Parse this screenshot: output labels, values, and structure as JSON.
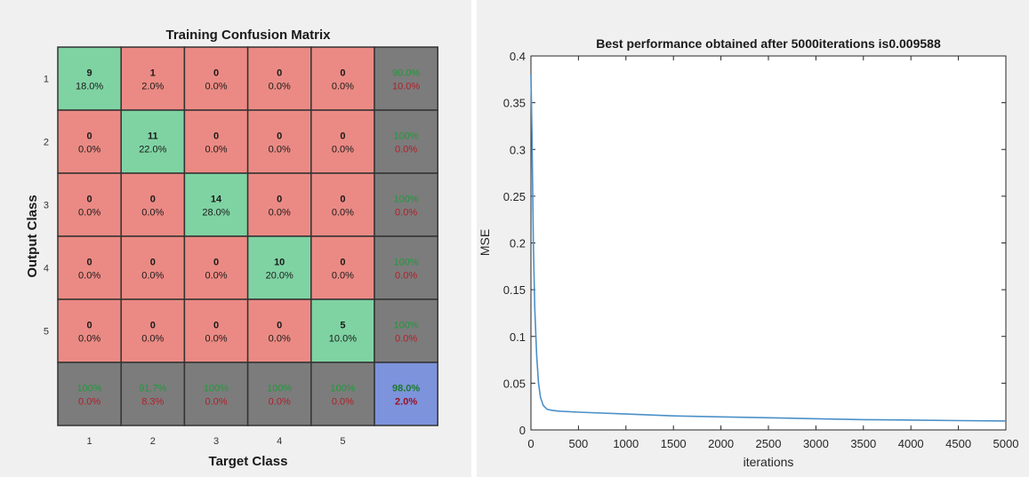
{
  "chart_data": [
    {
      "type": "heatmap",
      "title": "Training Confusion Matrix",
      "xlabel": "Target Class",
      "ylabel": "Output Class",
      "classes": [
        "1",
        "2",
        "3",
        "4",
        "5"
      ],
      "counts": [
        [
          9,
          1,
          0,
          0,
          0
        ],
        [
          0,
          11,
          0,
          0,
          0
        ],
        [
          0,
          0,
          14,
          0,
          0
        ],
        [
          0,
          0,
          0,
          10,
          0
        ],
        [
          0,
          0,
          0,
          0,
          5
        ]
      ],
      "percents": [
        [
          "18.0%",
          "2.0%",
          "0.0%",
          "0.0%",
          "0.0%"
        ],
        [
          "0.0%",
          "22.0%",
          "0.0%",
          "0.0%",
          "0.0%"
        ],
        [
          "0.0%",
          "0.0%",
          "28.0%",
          "0.0%",
          "0.0%"
        ],
        [
          "0.0%",
          "0.0%",
          "0.0%",
          "20.0%",
          "0.0%"
        ],
        [
          "0.0%",
          "0.0%",
          "0.0%",
          "0.0%",
          "10.0%"
        ]
      ],
      "row_summary": [
        [
          "90.0%",
          "10.0%"
        ],
        [
          "100%",
          "0.0%"
        ],
        [
          "100%",
          "0.0%"
        ],
        [
          "100%",
          "0.0%"
        ],
        [
          "100%",
          "0.0%"
        ]
      ],
      "col_summary": [
        [
          "100%",
          "0.0%"
        ],
        [
          "91.7%",
          "8.3%"
        ],
        [
          "100%",
          "0.0%"
        ],
        [
          "100%",
          "0.0%"
        ],
        [
          "100%",
          "0.0%"
        ]
      ],
      "overall": [
        "98.0%",
        "2.0%"
      ],
      "colors": {
        "correct": "#7fd3a3",
        "incorrect": "#eb8a84",
        "summary": "#7c7c7c",
        "overall": "#7d93dc"
      }
    },
    {
      "type": "line",
      "title": "Best performance obtained after 5000iterations is0.009588",
      "xlabel": "iterations",
      "ylabel": "MSE",
      "xlim": [
        0,
        5000
      ],
      "ylim": [
        0,
        0.4
      ],
      "xticks": [
        "0",
        "500",
        "1000",
        "1500",
        "2000",
        "2500",
        "3000",
        "3500",
        "4000",
        "4500",
        "5000"
      ],
      "yticks": [
        "0",
        "0.05",
        "0.1",
        "0.15",
        "0.2",
        "0.25",
        "0.3",
        "0.35",
        "0.4"
      ],
      "series": [
        {
          "x": [
            0,
            10,
            25,
            40,
            60,
            80,
            100,
            130,
            170,
            220,
            300,
            500,
            1000,
            1500,
            2000,
            2500,
            3000,
            3500,
            4000,
            4500,
            5000
          ],
          "values": [
            0.38,
            0.32,
            0.2,
            0.13,
            0.08,
            0.05,
            0.035,
            0.026,
            0.022,
            0.021,
            0.02,
            0.019,
            0.017,
            0.015,
            0.014,
            0.013,
            0.012,
            0.011,
            0.0105,
            0.01,
            0.009588
          ],
          "color": "#4a90c8"
        }
      ],
      "grid": false
    }
  ]
}
